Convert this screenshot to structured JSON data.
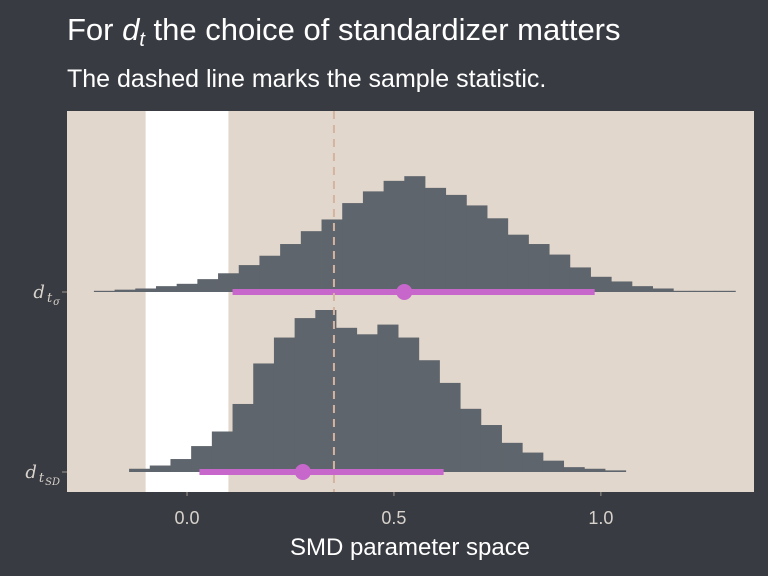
{
  "title": {
    "prefix": "For ",
    "math_main": "d",
    "math_sub": "t",
    "rest": " the choice of standardizer matters"
  },
  "subtitle": "The dashed line marks the sample statistic.",
  "colors": {
    "background": "#383b41",
    "panel": "#e2d7cc",
    "rope_band": "#ffffff",
    "histogram": "#5f656c",
    "interval": "#c767cc",
    "reference_line": "#d4b4a0"
  },
  "chart_data": {
    "type": "histogram-interval",
    "title": "For d_t the choice of standardizer matters",
    "subtitle": "The dashed line marks the sample statistic.",
    "xlabel": "SMD parameter space",
    "xlim": [
      -0.29,
      1.37
    ],
    "x_ticks": [
      0.0,
      0.5,
      1.0
    ],
    "x_tick_labels": [
      "0.0",
      "0.5",
      "1.0"
    ],
    "grid": false,
    "legend": "none",
    "reference_line_x": 0.355,
    "rope_band": [
      -0.1,
      0.1
    ],
    "bin_width": 0.05,
    "series": [
      {
        "label_main": "d",
        "label_sub1": "t",
        "label_sub2": "σ",
        "bin_start": -0.225,
        "counts": [
          0.01,
          0.02,
          0.03,
          0.05,
          0.07,
          0.11,
          0.16,
          0.23,
          0.31,
          0.41,
          0.52,
          0.62,
          0.76,
          0.86,
          0.95,
          0.99,
          0.89,
          0.83,
          0.74,
          0.63,
          0.49,
          0.41,
          0.32,
          0.21,
          0.13,
          0.09,
          0.05,
          0.03,
          0.01,
          0.005,
          0.002
        ],
        "point": 0.525,
        "interval": [
          0.11,
          0.985
        ]
      },
      {
        "label_main": "d",
        "label_sub1": "t",
        "label_sub2": "SD",
        "bin_start": -0.14,
        "counts": [
          0.02,
          0.04,
          0.08,
          0.16,
          0.25,
          0.42,
          0.67,
          0.83,
          0.95,
          1.0,
          0.89,
          0.85,
          0.91,
          0.83,
          0.69,
          0.55,
          0.39,
          0.29,
          0.18,
          0.12,
          0.07,
          0.03,
          0.02,
          0.01
        ],
        "point": 0.28,
        "interval": [
          0.03,
          0.62
        ]
      }
    ]
  }
}
